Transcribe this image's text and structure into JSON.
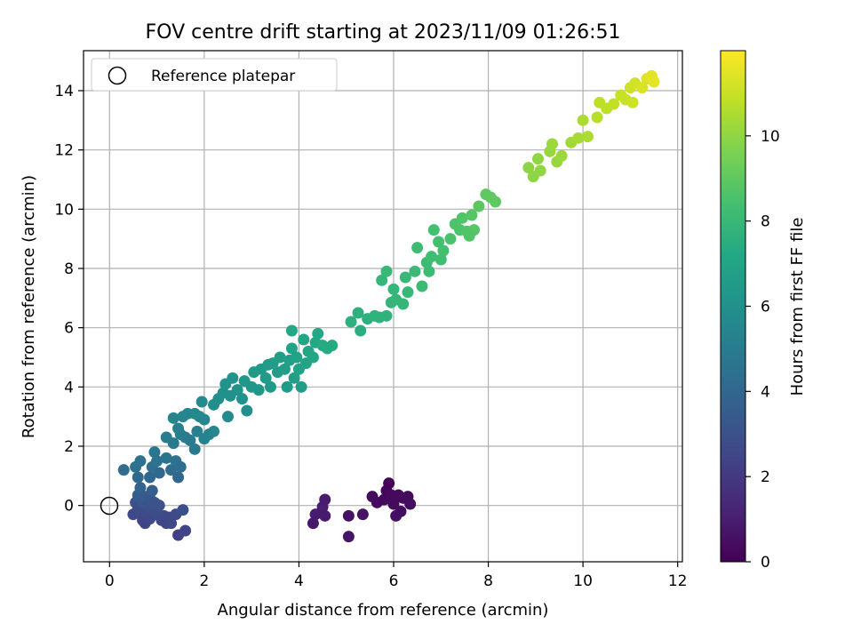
{
  "chart_data": {
    "type": "scatter",
    "title": "FOV centre drift starting at 2023/11/09 01:26:51",
    "xlabel": "Angular distance from reference (arcmin)",
    "ylabel": "Rotation from reference (arcmin)",
    "colorbar_label": "Hours from first FF file",
    "xlim": [
      -0.55,
      12.1
    ],
    "ylim": [
      -1.9,
      15.35
    ],
    "x_ticks": [
      0,
      2,
      4,
      6,
      8,
      10,
      12
    ],
    "y_ticks": [
      0,
      2,
      4,
      6,
      8,
      10,
      12,
      14
    ],
    "colorbar_range": [
      0,
      12
    ],
    "colorbar_ticks": [
      0,
      2,
      4,
      6,
      8,
      10
    ],
    "colormap": "viridis",
    "grid": true,
    "legend": {
      "position": "top-left",
      "entries": [
        "Reference platepar"
      ]
    },
    "reference_point": {
      "x": 0,
      "y": 0
    },
    "points": [
      {
        "x": 4.3,
        "y": -0.6,
        "h": 0.8
      },
      {
        "x": 4.35,
        "y": -0.3,
        "h": 0.9
      },
      {
        "x": 4.5,
        "y": -0.05,
        "h": 1.0
      },
      {
        "x": 4.55,
        "y": -0.35,
        "h": 0.9
      },
      {
        "x": 4.55,
        "y": 0.2,
        "h": 0.9
      },
      {
        "x": 5.05,
        "y": -0.35,
        "h": 0.6
      },
      {
        "x": 5.05,
        "y": -1.05,
        "h": 0.7
      },
      {
        "x": 5.35,
        "y": -0.3,
        "h": 0.6
      },
      {
        "x": 5.55,
        "y": 0.3,
        "h": 0.4
      },
      {
        "x": 5.65,
        "y": 0.1,
        "h": 0.4
      },
      {
        "x": 5.8,
        "y": 0.2,
        "h": 0.3
      },
      {
        "x": 5.85,
        "y": 0.5,
        "h": 0.2
      },
      {
        "x": 5.9,
        "y": 0.75,
        "h": 0.1
      },
      {
        "x": 5.95,
        "y": 0.35,
        "h": 0.3
      },
      {
        "x": 6.0,
        "y": 0.05,
        "h": 0.3
      },
      {
        "x": 6.05,
        "y": -0.35,
        "h": 0.5
      },
      {
        "x": 6.1,
        "y": 0.35,
        "h": 0.3
      },
      {
        "x": 6.15,
        "y": -0.2,
        "h": 0.4
      },
      {
        "x": 6.2,
        "y": 0.25,
        "h": 0.3
      },
      {
        "x": 6.3,
        "y": 0.3,
        "h": 0.3
      },
      {
        "x": 6.35,
        "y": 0.05,
        "h": 0.4
      },
      {
        "x": 0.5,
        "y": -0.3,
        "h": 2.6
      },
      {
        "x": 0.55,
        "y": 0.1,
        "h": 3.0
      },
      {
        "x": 0.6,
        "y": 0.35,
        "h": 3.5
      },
      {
        "x": 0.6,
        "y": -0.1,
        "h": 2.8
      },
      {
        "x": 0.65,
        "y": 0.6,
        "h": 3.8
      },
      {
        "x": 0.65,
        "y": -0.25,
        "h": 2.7
      },
      {
        "x": 0.7,
        "y": 0.1,
        "h": 3.2
      },
      {
        "x": 0.7,
        "y": -0.5,
        "h": 2.5
      },
      {
        "x": 0.75,
        "y": 0.3,
        "h": 3.4
      },
      {
        "x": 0.75,
        "y": -0.6,
        "h": 2.4
      },
      {
        "x": 0.8,
        "y": 0.0,
        "h": 3.0
      },
      {
        "x": 0.8,
        "y": -0.3,
        "h": 2.8
      },
      {
        "x": 0.85,
        "y": 0.25,
        "h": 3.3
      },
      {
        "x": 0.85,
        "y": -0.45,
        "h": 2.6
      },
      {
        "x": 0.9,
        "y": 0.5,
        "h": 3.6
      },
      {
        "x": 0.9,
        "y": -0.15,
        "h": 2.9
      },
      {
        "x": 0.95,
        "y": 0.1,
        "h": 3.1
      },
      {
        "x": 1.0,
        "y": -0.3,
        "h": 2.8
      },
      {
        "x": 1.05,
        "y": 0.0,
        "h": 3.0
      },
      {
        "x": 1.1,
        "y": -0.5,
        "h": 2.6
      },
      {
        "x": 1.15,
        "y": -0.35,
        "h": 2.7
      },
      {
        "x": 1.2,
        "y": -0.6,
        "h": 2.5
      },
      {
        "x": 1.25,
        "y": -0.4,
        "h": 2.6
      },
      {
        "x": 1.3,
        "y": -0.6,
        "h": 2.6
      },
      {
        "x": 1.4,
        "y": -0.3,
        "h": 2.7
      },
      {
        "x": 1.45,
        "y": -1.0,
        "h": 2.3
      },
      {
        "x": 1.55,
        "y": -0.15,
        "h": 2.9
      },
      {
        "x": 1.6,
        "y": -0.85,
        "h": 2.4
      },
      {
        "x": 0.6,
        "y": 0.95,
        "h": 4.1
      },
      {
        "x": 0.55,
        "y": 1.3,
        "h": 4.4
      },
      {
        "x": 0.65,
        "y": 1.5,
        "h": 4.5
      },
      {
        "x": 0.85,
        "y": 0.95,
        "h": 4.0
      },
      {
        "x": 0.9,
        "y": 1.3,
        "h": 4.3
      },
      {
        "x": 1.0,
        "y": 1.5,
        "h": 4.5
      },
      {
        "x": 0.3,
        "y": 1.2,
        "h": 4.2
      },
      {
        "x": 1.05,
        "y": 1.1,
        "h": 4.1
      },
      {
        "x": 0.95,
        "y": 1.8,
        "h": 4.7
      },
      {
        "x": 1.3,
        "y": 1.2,
        "h": 4.2
      },
      {
        "x": 1.4,
        "y": 1.5,
        "h": 4.5
      },
      {
        "x": 1.5,
        "y": 1.3,
        "h": 4.3
      },
      {
        "x": 1.45,
        "y": 0.95,
        "h": 4.0
      },
      {
        "x": 1.2,
        "y": 1.6,
        "h": 4.6
      },
      {
        "x": 1.35,
        "y": 2.1,
        "h": 4.9
      },
      {
        "x": 1.5,
        "y": 2.4,
        "h": 5.1
      },
      {
        "x": 1.35,
        "y": 2.95,
        "h": 5.4
      },
      {
        "x": 1.2,
        "y": 2.3,
        "h": 5.0
      },
      {
        "x": 1.45,
        "y": 2.6,
        "h": 5.2
      },
      {
        "x": 1.6,
        "y": 2.3,
        "h": 5.0
      },
      {
        "x": 1.7,
        "y": 2.2,
        "h": 5.0
      },
      {
        "x": 1.9,
        "y": 3.0,
        "h": 5.5
      },
      {
        "x": 1.55,
        "y": 3.0,
        "h": 5.4
      },
      {
        "x": 1.65,
        "y": 3.1,
        "h": 5.5
      },
      {
        "x": 1.8,
        "y": 3.1,
        "h": 5.6
      },
      {
        "x": 1.85,
        "y": 2.5,
        "h": 5.2
      },
      {
        "x": 1.8,
        "y": 1.9,
        "h": 4.9
      },
      {
        "x": 2.0,
        "y": 2.9,
        "h": 5.5
      },
      {
        "x": 2.0,
        "y": 2.25,
        "h": 5.3
      },
      {
        "x": 2.1,
        "y": 2.4,
        "h": 5.3
      },
      {
        "x": 2.2,
        "y": 2.5,
        "h": 5.4
      },
      {
        "x": 1.95,
        "y": 3.5,
        "h": 5.7
      },
      {
        "x": 2.2,
        "y": 3.4,
        "h": 5.8
      },
      {
        "x": 2.3,
        "y": 3.6,
        "h": 5.9
      },
      {
        "x": 2.4,
        "y": 3.8,
        "h": 6.0
      },
      {
        "x": 2.45,
        "y": 4.1,
        "h": 6.1
      },
      {
        "x": 2.55,
        "y": 3.7,
        "h": 6.0
      },
      {
        "x": 2.5,
        "y": 3.0,
        "h": 5.7
      },
      {
        "x": 2.6,
        "y": 4.3,
        "h": 6.2
      },
      {
        "x": 2.7,
        "y": 3.9,
        "h": 6.1
      },
      {
        "x": 2.8,
        "y": 3.6,
        "h": 6.0
      },
      {
        "x": 2.85,
        "y": 4.2,
        "h": 6.3
      },
      {
        "x": 2.9,
        "y": 3.2,
        "h": 5.9
      },
      {
        "x": 3.0,
        "y": 4.0,
        "h": 6.3
      },
      {
        "x": 3.05,
        "y": 4.5,
        "h": 6.4
      },
      {
        "x": 3.15,
        "y": 3.9,
        "h": 6.3
      },
      {
        "x": 3.2,
        "y": 4.6,
        "h": 6.5
      },
      {
        "x": 3.3,
        "y": 4.3,
        "h": 6.5
      },
      {
        "x": 3.4,
        "y": 4.0,
        "h": 6.4
      },
      {
        "x": 3.45,
        "y": 4.8,
        "h": 6.6
      },
      {
        "x": 3.55,
        "y": 4.5,
        "h": 6.6
      },
      {
        "x": 3.6,
        "y": 5.0,
        "h": 6.7
      },
      {
        "x": 3.7,
        "y": 4.6,
        "h": 6.7
      },
      {
        "x": 3.75,
        "y": 4.0,
        "h": 6.5
      },
      {
        "x": 3.8,
        "y": 4.9,
        "h": 6.8
      },
      {
        "x": 3.85,
        "y": 5.3,
        "h": 6.9
      },
      {
        "x": 3.9,
        "y": 4.3,
        "h": 6.7
      },
      {
        "x": 3.95,
        "y": 5.0,
        "h": 6.9
      },
      {
        "x": 4.0,
        "y": 4.6,
        "h": 6.9
      },
      {
        "x": 4.1,
        "y": 5.6,
        "h": 7.1
      },
      {
        "x": 4.15,
        "y": 4.8,
        "h": 7.0
      },
      {
        "x": 4.2,
        "y": 5.2,
        "h": 7.1
      },
      {
        "x": 4.3,
        "y": 5.0,
        "h": 7.1
      },
      {
        "x": 4.35,
        "y": 5.5,
        "h": 7.2
      },
      {
        "x": 3.85,
        "y": 5.9,
        "h": 7.2
      },
      {
        "x": 4.4,
        "y": 5.8,
        "h": 7.2
      },
      {
        "x": 4.5,
        "y": 5.4,
        "h": 7.3
      },
      {
        "x": 4.6,
        "y": 5.3,
        "h": 7.3
      },
      {
        "x": 4.7,
        "y": 5.4,
        "h": 7.3
      },
      {
        "x": 4.05,
        "y": 4.0,
        "h": 6.6
      },
      {
        "x": 3.35,
        "y": 4.75,
        "h": 6.6
      },
      {
        "x": 5.1,
        "y": 6.2,
        "h": 7.6
      },
      {
        "x": 5.25,
        "y": 6.5,
        "h": 7.6
      },
      {
        "x": 5.3,
        "y": 5.9,
        "h": 7.5
      },
      {
        "x": 5.45,
        "y": 6.3,
        "h": 7.6
      },
      {
        "x": 5.6,
        "y": 6.4,
        "h": 7.7
      },
      {
        "x": 5.7,
        "y": 6.35,
        "h": 7.7
      },
      {
        "x": 5.85,
        "y": 6.4,
        "h": 7.7
      },
      {
        "x": 5.75,
        "y": 7.6,
        "h": 7.9
      },
      {
        "x": 5.85,
        "y": 7.9,
        "h": 8.0
      },
      {
        "x": 5.95,
        "y": 6.85,
        "h": 7.8
      },
      {
        "x": 6.0,
        "y": 7.3,
        "h": 7.9
      },
      {
        "x": 6.05,
        "y": 6.95,
        "h": 7.9
      },
      {
        "x": 6.2,
        "y": 6.8,
        "h": 7.9
      },
      {
        "x": 6.25,
        "y": 7.7,
        "h": 8.0
      },
      {
        "x": 6.3,
        "y": 7.2,
        "h": 8.0
      },
      {
        "x": 6.45,
        "y": 7.9,
        "h": 8.1
      },
      {
        "x": 6.5,
        "y": 8.7,
        "h": 8.2
      },
      {
        "x": 6.6,
        "y": 7.4,
        "h": 8.1
      },
      {
        "x": 6.7,
        "y": 8.2,
        "h": 8.2
      },
      {
        "x": 6.75,
        "y": 7.9,
        "h": 8.2
      },
      {
        "x": 6.8,
        "y": 8.4,
        "h": 8.3
      },
      {
        "x": 6.85,
        "y": 9.3,
        "h": 8.4
      },
      {
        "x": 6.95,
        "y": 8.9,
        "h": 8.4
      },
      {
        "x": 7.0,
        "y": 8.3,
        "h": 8.3
      },
      {
        "x": 7.05,
        "y": 8.6,
        "h": 8.4
      },
      {
        "x": 7.2,
        "y": 9.0,
        "h": 8.5
      },
      {
        "x": 7.3,
        "y": 9.5,
        "h": 8.6
      },
      {
        "x": 7.4,
        "y": 9.3,
        "h": 8.6
      },
      {
        "x": 7.45,
        "y": 9.7,
        "h": 8.7
      },
      {
        "x": 7.55,
        "y": 9.25,
        "h": 8.7
      },
      {
        "x": 7.65,
        "y": 9.8,
        "h": 8.8
      },
      {
        "x": 7.7,
        "y": 9.3,
        "h": 8.8
      },
      {
        "x": 7.8,
        "y": 10.1,
        "h": 8.9
      },
      {
        "x": 7.95,
        "y": 10.5,
        "h": 9.0
      },
      {
        "x": 8.05,
        "y": 10.4,
        "h": 9.0
      },
      {
        "x": 8.15,
        "y": 10.25,
        "h": 9.0
      },
      {
        "x": 7.6,
        "y": 9.1,
        "h": 8.7
      },
      {
        "x": 8.85,
        "y": 11.4,
        "h": 9.9
      },
      {
        "x": 8.95,
        "y": 11.1,
        "h": 9.9
      },
      {
        "x": 9.05,
        "y": 11.7,
        "h": 10.0
      },
      {
        "x": 9.1,
        "y": 11.3,
        "h": 10.0
      },
      {
        "x": 9.3,
        "y": 11.95,
        "h": 10.1
      },
      {
        "x": 9.35,
        "y": 12.2,
        "h": 10.2
      },
      {
        "x": 9.45,
        "y": 11.6,
        "h": 10.1
      },
      {
        "x": 9.55,
        "y": 11.8,
        "h": 10.2
      },
      {
        "x": 9.75,
        "y": 12.25,
        "h": 10.3
      },
      {
        "x": 9.9,
        "y": 12.4,
        "h": 10.4
      },
      {
        "x": 10.0,
        "y": 13.0,
        "h": 10.5
      },
      {
        "x": 10.1,
        "y": 12.45,
        "h": 10.5
      },
      {
        "x": 10.3,
        "y": 13.1,
        "h": 10.7
      },
      {
        "x": 10.35,
        "y": 13.6,
        "h": 10.8
      },
      {
        "x": 10.5,
        "y": 13.4,
        "h": 10.8
      },
      {
        "x": 10.65,
        "y": 13.55,
        "h": 10.9
      },
      {
        "x": 10.8,
        "y": 13.85,
        "h": 11.0
      },
      {
        "x": 10.9,
        "y": 13.7,
        "h": 11.0
      },
      {
        "x": 11.0,
        "y": 14.1,
        "h": 11.1
      },
      {
        "x": 11.1,
        "y": 14.25,
        "h": 11.2
      },
      {
        "x": 11.25,
        "y": 14.1,
        "h": 11.3
      },
      {
        "x": 11.35,
        "y": 14.4,
        "h": 11.4
      },
      {
        "x": 11.45,
        "y": 14.5,
        "h": 11.5
      },
      {
        "x": 11.5,
        "y": 14.3,
        "h": 11.5
      },
      {
        "x": 11.05,
        "y": 13.6,
        "h": 11.1
      }
    ]
  }
}
